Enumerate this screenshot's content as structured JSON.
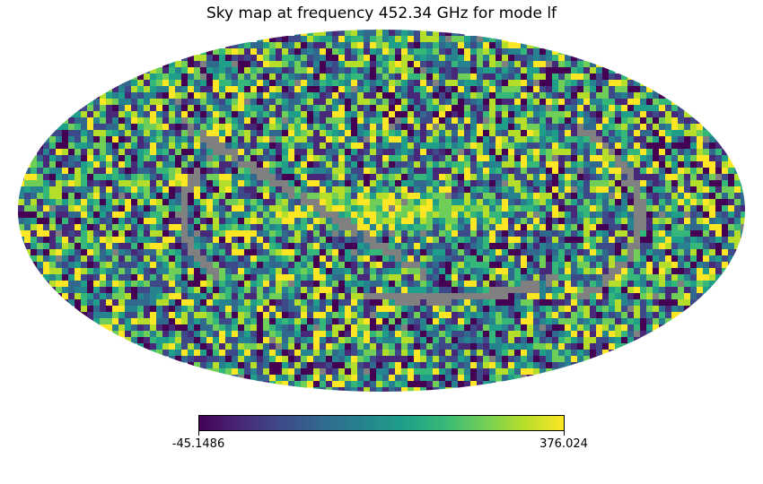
{
  "chart_data": {
    "type": "heatmap",
    "projection": "mollweide",
    "title": "Sky map at frequency 452.34 GHz for mode lf",
    "colormap": "viridis",
    "colorbar": {
      "min": -45.1486,
      "max": 376.024,
      "min_label": "-45.1486",
      "max_label": "376.024",
      "orientation": "horizontal",
      "placement": "bottom-center"
    },
    "masked_color": "#808080",
    "note": "Pixelized all-sky map: noisy values spanning the full color range, with gray masked bands and a brighter yellow-green band near the center."
  },
  "colors": {
    "viridis": [
      "#440154",
      "#482878",
      "#3e4989",
      "#31688e",
      "#26828e",
      "#1f9e89",
      "#35b779",
      "#6ece58",
      "#b5de2b",
      "#fde725"
    ],
    "masked": "#808080"
  }
}
